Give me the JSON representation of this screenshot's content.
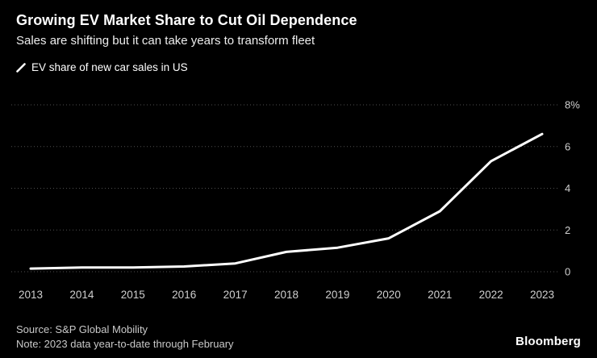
{
  "header": {
    "title": "Growing EV Market Share to Cut Oil Dependence",
    "subtitle": "Sales are shifting but it can take years to transform fleet"
  },
  "legend": {
    "label": "EV share of new car sales in US"
  },
  "footer": {
    "source": "Source: S&P Global Mobility",
    "note": "Note: 2023 data year-to-date through February",
    "brand": "Bloomberg"
  },
  "colors": {
    "background": "#000000",
    "line": "#ffffff",
    "gridline": "#4f4f4f",
    "tick_label": "#cfcfcf"
  },
  "chart_data": {
    "type": "line",
    "title": "EV share of new car sales in US",
    "x": [
      2013,
      2014,
      2015,
      2016,
      2017,
      2018,
      2019,
      2020,
      2021,
      2022,
      2023
    ],
    "x_tick_labels": [
      "2013",
      "2014",
      "2015",
      "2016",
      "2017",
      "2018",
      "2019",
      "2020",
      "2021",
      "2022",
      "2023"
    ],
    "values": [
      0.15,
      0.2,
      0.2,
      0.25,
      0.4,
      0.95,
      1.15,
      1.6,
      2.9,
      5.3,
      6.6
    ],
    "series_name": "EV share of new car sales in US",
    "xlabel": "",
    "ylabel": "",
    "ylim": [
      0,
      8
    ],
    "y_ticks": [
      0,
      2,
      4,
      6,
      8
    ],
    "y_tick_labels": [
      "0",
      "2",
      "4",
      "6",
      "8%"
    ],
    "grid": "dotted horizontal",
    "legend_position": "top-left"
  }
}
